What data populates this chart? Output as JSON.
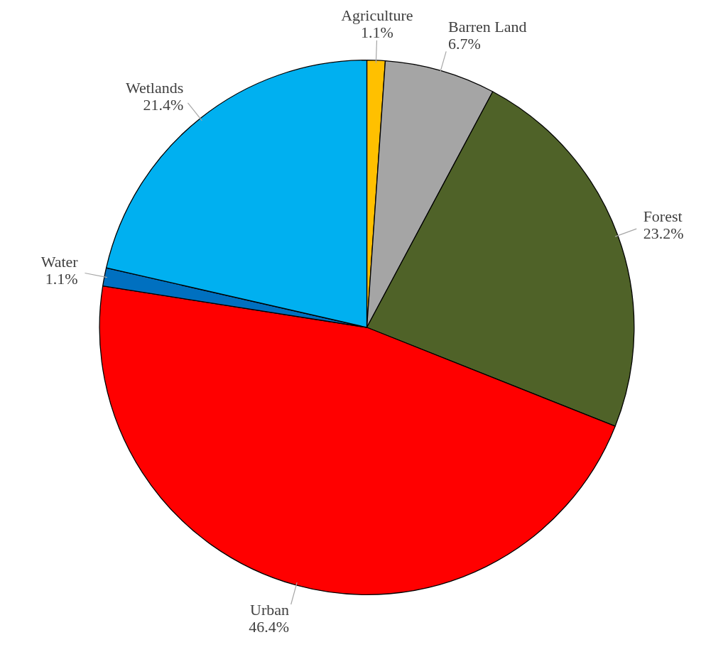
{
  "chart_data": {
    "type": "pie",
    "categories": [
      "Agriculture",
      "Barren Land",
      "Forest",
      "Urban",
      "Water",
      "Wetlands"
    ],
    "values": [
      1.1,
      6.7,
      23.2,
      46.4,
      1.1,
      21.4
    ],
    "value_labels": [
      "1.1%",
      "6.7%",
      "23.2%",
      "46.4%",
      "1.1%",
      "21.4%"
    ],
    "colors": [
      "#ffc000",
      "#a5a5a5",
      "#4f6228",
      "#ff0000",
      "#0070c0",
      "#00b0f0"
    ],
    "legend": false
  }
}
